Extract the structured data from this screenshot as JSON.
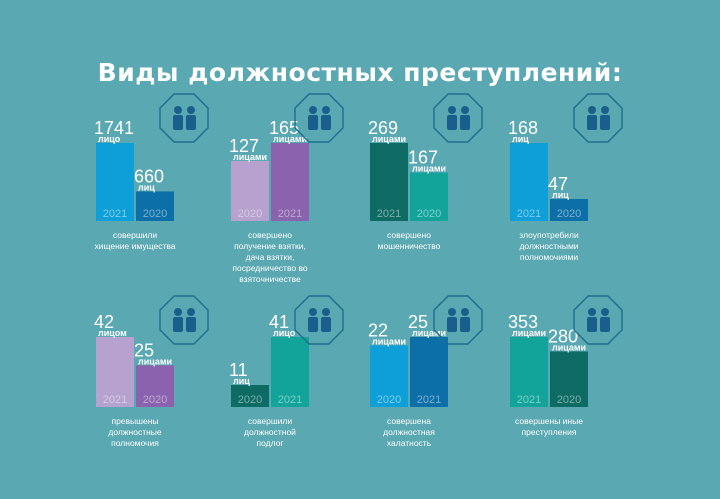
{
  "title": "Виды должностных преступлений:",
  "chart_data": [
    {
      "type": "bar",
      "caption": [
        "совершили",
        "хищение имущества"
      ],
      "icon": "two-people-icon",
      "bars": [
        {
          "year": "2021",
          "value": 1741,
          "unit": "лицо",
          "color": "#0f9fd8"
        },
        {
          "year": "2020",
          "value": 660,
          "unit": "лиц",
          "color": "#0c6fa7"
        }
      ]
    },
    {
      "type": "bar",
      "caption": [
        "совершено",
        "получение взятки,",
        "дача взятки,",
        "посредничество во",
        "взяточничестве"
      ],
      "icon": "bribe-handshake-icon",
      "bars": [
        {
          "year": "2020",
          "value": 127,
          "unit": "лицами",
          "color": "#b6a1cf"
        },
        {
          "year": "2021",
          "value": 165,
          "unit": "лицами",
          "color": "#8a62ad"
        }
      ]
    },
    {
      "type": "bar",
      "caption": [
        "совершено",
        "мошенничество"
      ],
      "icon": "fraud-icon",
      "bars": [
        {
          "year": "2021",
          "value": 269,
          "unit": "лицами",
          "color": "#0d6b64"
        },
        {
          "year": "2020",
          "value": 167,
          "unit": "лицами",
          "color": "#12a49a"
        }
      ]
    },
    {
      "type": "bar",
      "caption": [
        "злоупотребили",
        "должностными",
        "полномочиями"
      ],
      "icon": "crowd-icon",
      "bars": [
        {
          "year": "2021",
          "value": 168,
          "unit": "лиц",
          "color": "#0f9fd8"
        },
        {
          "year": "2020",
          "value": 47,
          "unit": "лиц",
          "color": "#0c6fa7"
        }
      ]
    },
    {
      "type": "bar",
      "caption": [
        "превышены",
        "должностные",
        "полномочия"
      ],
      "icon": "official-briefcase-icon",
      "bars": [
        {
          "year": "2021",
          "value": 42,
          "unit": "лицом",
          "color": "#b6a1cf"
        },
        {
          "year": "2020",
          "value": 25,
          "unit": "лицами",
          "color": "#8a62ad"
        }
      ]
    },
    {
      "type": "bar",
      "caption": [
        "совершили",
        "должностной",
        "подлог"
      ],
      "icon": "document-forgery-icon",
      "bars": [
        {
          "year": "2020",
          "value": 11,
          "unit": "лиц",
          "color": "#0d6b64"
        },
        {
          "year": "2021",
          "value": 41,
          "unit": "лицо",
          "color": "#12a49a"
        }
      ]
    },
    {
      "type": "bar",
      "caption": [
        "совершена",
        "должностная",
        "халатность"
      ],
      "icon": "negligence-icon",
      "bars": [
        {
          "year": "2020",
          "value": 22,
          "unit": "лицами",
          "color": "#0f9fd8"
        },
        {
          "year": "2021",
          "value": 25,
          "unit": "лицами",
          "color": "#0c6fa7"
        }
      ]
    },
    {
      "type": "bar",
      "caption": [
        "совершены иные",
        "преступления"
      ],
      "icon": "police-officer-icon",
      "bars": [
        {
          "year": "2021",
          "value": 353,
          "unit": "лицами",
          "color": "#12a49a"
        },
        {
          "year": "2020",
          "value": 280,
          "unit": "лицами",
          "color": "#0d6b64"
        }
      ]
    }
  ]
}
